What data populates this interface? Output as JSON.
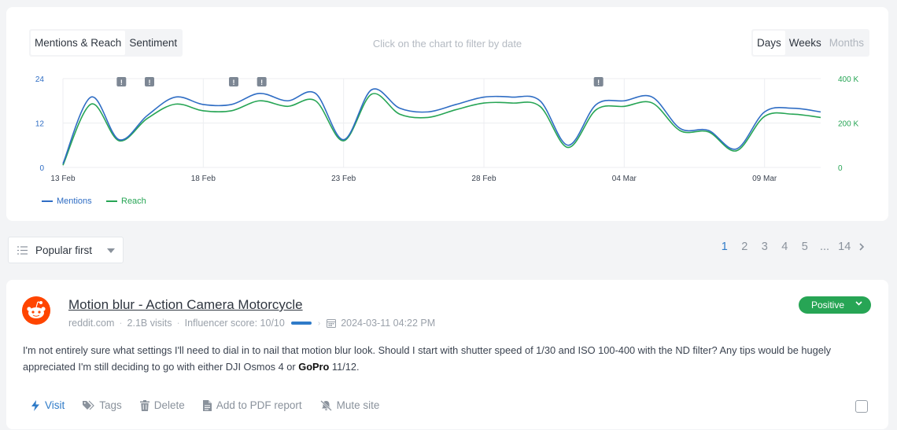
{
  "chart_toolbar": {
    "tabs": [
      "Mentions & Reach",
      "Sentiment"
    ],
    "active_tab": "Mentions & Reach",
    "hint": "Click on the chart to filter by date",
    "periods": [
      "Days",
      "Weeks",
      "Months"
    ],
    "active_period": "Days",
    "disabled_period": "Months"
  },
  "chart_data": {
    "type": "line",
    "x_tick_labels": [
      "13 Feb",
      "18 Feb",
      "23 Feb",
      "28 Feb",
      "04 Mar",
      "09 Mar"
    ],
    "x": [
      "13 Feb",
      "14 Feb",
      "15 Feb",
      "16 Feb",
      "17 Feb",
      "18 Feb",
      "19 Feb",
      "20 Feb",
      "21 Feb",
      "22 Feb",
      "23 Feb",
      "24 Feb",
      "25 Feb",
      "26 Feb",
      "27 Feb",
      "28 Feb",
      "29 Feb",
      "01 Mar",
      "02 Mar",
      "03 Mar",
      "04 Mar",
      "05 Mar",
      "06 Mar",
      "07 Mar",
      "08 Mar",
      "09 Mar",
      "10 Mar",
      "11 Mar"
    ],
    "y_left": {
      "ticks": [
        "0",
        "12",
        "24"
      ],
      "range": [
        0,
        24
      ]
    },
    "y_right": {
      "ticks": [
        "0",
        "200 K",
        "400 K"
      ],
      "range": [
        0,
        400000
      ]
    },
    "series": [
      {
        "name": "Mentions",
        "axis": "left",
        "color": "#2f6dc4",
        "values": [
          1,
          19,
          7.5,
          14,
          19,
          17,
          17,
          20,
          18,
          20,
          7.5,
          21,
          16,
          15,
          17,
          19,
          19,
          18,
          6,
          17,
          18,
          19,
          10.5,
          10,
          5,
          15,
          16,
          15
        ]
      },
      {
        "name": "Reach",
        "axis": "right",
        "color": "#27a555",
        "values": [
          10000,
          285000,
          120000,
          220000,
          285000,
          255000,
          255000,
          300000,
          275000,
          300000,
          120000,
          330000,
          240000,
          225000,
          260000,
          290000,
          290000,
          275000,
          90000,
          260000,
          275000,
          290000,
          165000,
          160000,
          75000,
          230000,
          240000,
          225000
        ]
      }
    ],
    "markers_on_days": [
      "15 Feb",
      "16 Feb",
      "19 Feb",
      "20 Feb",
      "03 Mar"
    ],
    "marker_symbol": "!",
    "grid": true,
    "legend": "bottom-left"
  },
  "sort": {
    "label": "Popular first"
  },
  "pagination": {
    "pages": [
      "1",
      "2",
      "3",
      "4",
      "5"
    ],
    "current": "1",
    "ellipsis": "...",
    "last": "14"
  },
  "mention": {
    "title": "Motion blur - Action Camera Motorcycle",
    "source": "reddit.com",
    "visits": "2.1B visits",
    "influencer": "Influencer score: 10/10",
    "date": "2024-03-11 04:22 PM",
    "sentiment": "Positive",
    "sentiment_color": "#27a555",
    "body_before": "I'm not entirely sure what settings I'll need to dial in to nail that motion blur look. Should I start with shutter speed of 1/30 and ISO 100-400 with the ND filter? Any tips would be hugely appreciated I'm still deciding to go with either DJI Osmos 4 or ",
    "body_bold": "GoPro",
    "body_after": " 11/12."
  },
  "actions": {
    "visit": "Visit",
    "tags": "Tags",
    "delete": "Delete",
    "pdf": "Add to PDF report",
    "mute": "Mute site"
  },
  "colors": {
    "accent": "#2f7bc8",
    "positive": "#27a555",
    "mentions": "#2f6dc4",
    "reach": "#27a555"
  }
}
